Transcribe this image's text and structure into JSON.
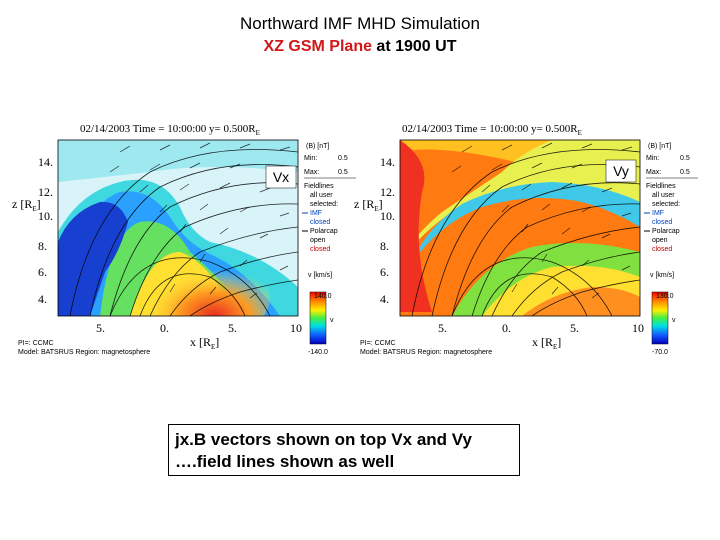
{
  "header": {
    "title": "Northward IMF MHD Simulation",
    "subtitle_red": "XZ GSM Plane",
    "subtitle_black": " at 1900 UT"
  },
  "panels": [
    {
      "id": "left",
      "variable": "Vx",
      "time_line": "02/14/2003 Time = 10:00:00 y= 0.500R",
      "time_sub": "E",
      "y_ticks": [
        "14.",
        "12.",
        "10.",
        "8.",
        "6.",
        "4."
      ],
      "x_ticks": [
        "5.",
        "0.",
        "5.",
        "10"
      ],
      "z_label": "z [R",
      "z_sub": "E",
      "x_label": "x [R",
      "x_sub": "E",
      "footer1": "PI=: CCMC",
      "footer2": "Model: BATSRUS   Region: magnetosphere",
      "colorbar_max": "140.0",
      "colorbar_min": "-140.0",
      "colorbar_unit": "v",
      "unit_label": "v  [km/s]",
      "legend": {
        "header": "(B) [nT]",
        "min_label": "Min:",
        "min_val": "0.5",
        "max_label": "Max:",
        "max_val": "0.5",
        "fieldlines": "Fieldlines",
        "all": "all user",
        "selected": "selected:",
        "imf": "IMF",
        "closed": "closed",
        "polarcap": "Polarcap",
        "open": "open",
        "closed2": "closed"
      }
    },
    {
      "id": "right",
      "variable": "Vy",
      "time_line": "02/14/2003 Time = 10:00:00 y= 0.500R",
      "time_sub": "E",
      "y_ticks": [
        "14.",
        "12.",
        "10.",
        "8.",
        "6.",
        "4."
      ],
      "x_ticks": [
        "5.",
        "0.",
        "5.",
        "10"
      ],
      "z_label": "z [R",
      "z_sub": "E",
      "x_label": "x [R",
      "x_sub": "E",
      "footer1": "PI=: CCMC",
      "footer2": "Model: BATSRUS   Region: magnetosphere",
      "colorbar_max": "130.0",
      "colorbar_min": "-70.0",
      "colorbar_unit": "v",
      "unit_label": "v  [km/s]",
      "legend": {
        "header": "(B) [nT]",
        "min_label": "Min:",
        "min_val": "0.5",
        "max_label": "Max:",
        "max_val": "0.5",
        "fieldlines": "Fieldlines",
        "all": "all user",
        "selected": "selected:",
        "imf": "IMF",
        "closed": "closed",
        "polarcap": "Polarcap",
        "open": "open",
        "closed2": "closed"
      }
    }
  ],
  "note": {
    "line1": "jx.B vectors shown on top Vx and Vy",
    "line2": "….field lines shown as well"
  }
}
